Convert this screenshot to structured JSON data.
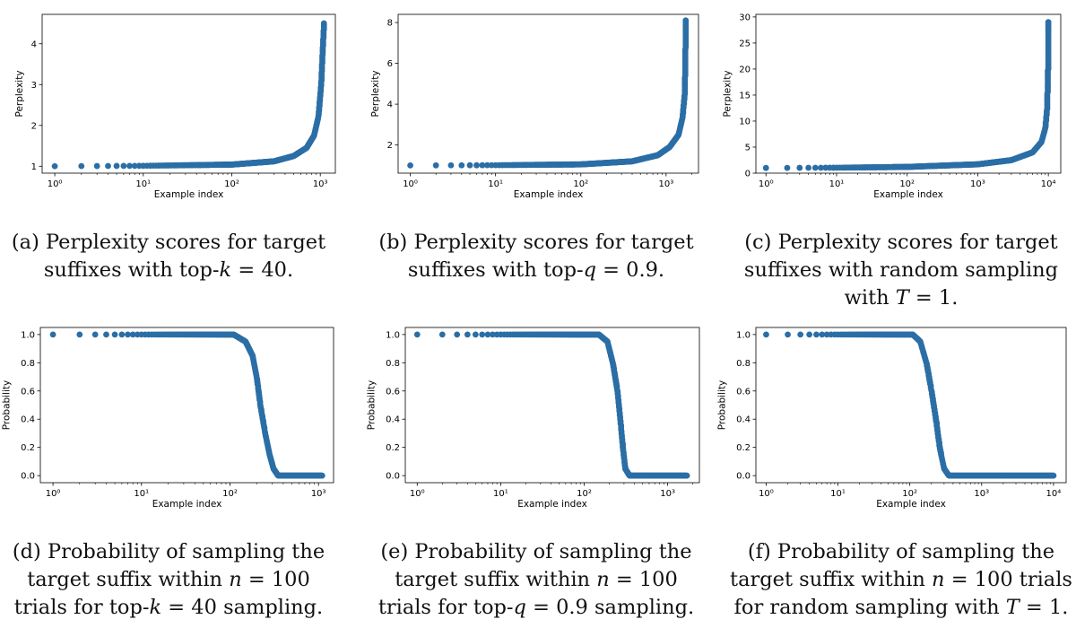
{
  "colors": {
    "marker": "#2b6ea6",
    "axis": "#000000"
  },
  "chart_data": [
    {
      "id": "a",
      "type": "scatter",
      "xscale": "log",
      "xlabel": "Example index",
      "ylabel": "Perplexity",
      "xlim": [
        0.72,
        1480
      ],
      "ylim": [
        0.83,
        4.72
      ],
      "xticks": [
        {
          "v": 1,
          "label": "10⁰"
        },
        {
          "v": 10,
          "label": "10¹"
        },
        {
          "v": 100,
          "label": "10²"
        },
        {
          "v": 1000,
          "label": "10³"
        }
      ],
      "yticks": [
        {
          "v": 1,
          "label": "1"
        },
        {
          "v": 2,
          "label": "2"
        },
        {
          "v": 3,
          "label": "3"
        },
        {
          "v": 4,
          "label": "4"
        }
      ],
      "n": 1100,
      "curve": "rising",
      "anchors": [
        [
          1,
          1.0
        ],
        [
          10,
          1.01
        ],
        [
          100,
          1.04
        ],
        [
          300,
          1.12
        ],
        [
          500,
          1.25
        ],
        [
          700,
          1.45
        ],
        [
          850,
          1.75
        ],
        [
          950,
          2.2
        ],
        [
          1020,
          3.0
        ],
        [
          1060,
          3.8
        ],
        [
          1100,
          4.5
        ]
      ],
      "caption_lines": [
        "(a) Perplexity scores for target",
        "suffixes with top-<i>k</i> = 40."
      ]
    },
    {
      "id": "b",
      "type": "scatter",
      "xscale": "log",
      "xlabel": "Example index",
      "ylabel": "Perplexity",
      "xlim": [
        0.72,
        2400
      ],
      "ylim": [
        0.62,
        8.4
      ],
      "xticks": [
        {
          "v": 1,
          "label": "10⁰"
        },
        {
          "v": 10,
          "label": "10¹"
        },
        {
          "v": 100,
          "label": "10²"
        },
        {
          "v": 1000,
          "label": "10³"
        }
      ],
      "yticks": [
        {
          "v": 2,
          "label": "2"
        },
        {
          "v": 4,
          "label": "4"
        },
        {
          "v": 6,
          "label": "6"
        },
        {
          "v": 8,
          "label": "8"
        }
      ],
      "n": 1700,
      "curve": "rising",
      "anchors": [
        [
          1,
          1.0
        ],
        [
          10,
          1.01
        ],
        [
          100,
          1.05
        ],
        [
          400,
          1.2
        ],
        [
          800,
          1.5
        ],
        [
          1100,
          1.9
        ],
        [
          1400,
          2.5
        ],
        [
          1550,
          3.3
        ],
        [
          1650,
          4.5
        ],
        [
          1700,
          8.1
        ]
      ],
      "caption_lines": [
        "(b) Perplexity scores for target",
        "suffixes with top-<i>q</i> = 0.9."
      ]
    },
    {
      "id": "c",
      "type": "scatter",
      "xscale": "log",
      "xlabel": "Example index",
      "ylabel": "Perplexity",
      "xlim": [
        0.72,
        15000
      ],
      "ylim": [
        0,
        30.5
      ],
      "xticks": [
        {
          "v": 1,
          "label": "10⁰"
        },
        {
          "v": 10,
          "label": "10¹"
        },
        {
          "v": 100,
          "label": "10²"
        },
        {
          "v": 1000,
          "label": "10³"
        },
        {
          "v": 10000,
          "label": "10⁴"
        }
      ],
      "yticks": [
        {
          "v": 0,
          "label": "0"
        },
        {
          "v": 5,
          "label": "5"
        },
        {
          "v": 10,
          "label": "10"
        },
        {
          "v": 15,
          "label": "15"
        },
        {
          "v": 20,
          "label": "20"
        },
        {
          "v": 25,
          "label": "25"
        },
        {
          "v": 30,
          "label": "30"
        }
      ],
      "n": 10000,
      "curve": "rising",
      "anchors": [
        [
          1,
          1.0
        ],
        [
          10,
          1.05
        ],
        [
          100,
          1.2
        ],
        [
          1000,
          1.7
        ],
        [
          3000,
          2.5
        ],
        [
          6000,
          4.0
        ],
        [
          8000,
          6.0
        ],
        [
          9000,
          8.5
        ],
        [
          9500,
          12
        ],
        [
          9800,
          18
        ],
        [
          10000,
          29
        ]
      ],
      "caption_lines": [
        "(c) Perplexity scores for target",
        "suffixes with random sampling",
        "with <i>T</i> = 1."
      ]
    },
    {
      "id": "d",
      "type": "scatter",
      "xscale": "log",
      "xlabel": "Example index",
      "ylabel": "Probability",
      "xlim": [
        0.72,
        1480
      ],
      "ylim": [
        -0.05,
        1.05
      ],
      "xticks": [
        {
          "v": 1,
          "label": "10⁰"
        },
        {
          "v": 10,
          "label": "10¹"
        },
        {
          "v": 100,
          "label": "10²"
        },
        {
          "v": 1000,
          "label": "10³"
        }
      ],
      "yticks": [
        {
          "v": 0,
          "label": "0.0"
        },
        {
          "v": 0.2,
          "label": "0.2"
        },
        {
          "v": 0.4,
          "label": "0.4"
        },
        {
          "v": 0.6,
          "label": "0.6"
        },
        {
          "v": 0.8,
          "label": "0.8"
        },
        {
          "v": 1,
          "label": "1.0"
        }
      ],
      "n": 1100,
      "curve": "falling",
      "anchors": [
        [
          1,
          1.0
        ],
        [
          110,
          1.0
        ],
        [
          150,
          0.95
        ],
        [
          180,
          0.85
        ],
        [
          200,
          0.7
        ],
        [
          220,
          0.5
        ],
        [
          250,
          0.3
        ],
        [
          280,
          0.15
        ],
        [
          310,
          0.05
        ],
        [
          350,
          0.0
        ],
        [
          1100,
          0.0
        ]
      ],
      "caption_lines": [
        "(d) Probability of sampling the",
        "target suffix within <i>n</i> = 100",
        "trials for top-<i>k</i> = 40 sampling."
      ]
    },
    {
      "id": "e",
      "type": "scatter",
      "xscale": "log",
      "xlabel": "Example index",
      "ylabel": "Probability",
      "xlim": [
        0.72,
        2400
      ],
      "ylim": [
        -0.05,
        1.05
      ],
      "xticks": [
        {
          "v": 1,
          "label": "10⁰"
        },
        {
          "v": 10,
          "label": "10¹"
        },
        {
          "v": 100,
          "label": "10²"
        },
        {
          "v": 1000,
          "label": "10³"
        }
      ],
      "yticks": [
        {
          "v": 0,
          "label": "0.0"
        },
        {
          "v": 0.2,
          "label": "0.2"
        },
        {
          "v": 0.4,
          "label": "0.4"
        },
        {
          "v": 0.6,
          "label": "0.6"
        },
        {
          "v": 0.8,
          "label": "0.8"
        },
        {
          "v": 1,
          "label": "1.0"
        }
      ],
      "n": 1700,
      "curve": "falling",
      "anchors": [
        [
          1,
          1.0
        ],
        [
          150,
          1.0
        ],
        [
          190,
          0.95
        ],
        [
          220,
          0.8
        ],
        [
          250,
          0.6
        ],
        [
          270,
          0.4
        ],
        [
          290,
          0.2
        ],
        [
          310,
          0.05
        ],
        [
          350,
          0.0
        ],
        [
          1700,
          0.0
        ]
      ],
      "caption_lines": [
        "(e) Probability of sampling the",
        "target suffix within <i>n</i> = 100",
        "trials for top-<i>q</i> = 0.9 sampling."
      ]
    },
    {
      "id": "f",
      "type": "scatter",
      "xscale": "log",
      "xlabel": "Example index",
      "ylabel": "Probability",
      "xlim": [
        0.72,
        15000
      ],
      "ylim": [
        -0.05,
        1.05
      ],
      "xticks": [
        {
          "v": 1,
          "label": "10⁰"
        },
        {
          "v": 10,
          "label": "10¹"
        },
        {
          "v": 100,
          "label": "10²"
        },
        {
          "v": 1000,
          "label": "10³"
        },
        {
          "v": 10000,
          "label": "10⁴"
        }
      ],
      "yticks": [
        {
          "v": 0,
          "label": "0.0"
        },
        {
          "v": 0.2,
          "label": "0.2"
        },
        {
          "v": 0.4,
          "label": "0.4"
        },
        {
          "v": 0.6,
          "label": "0.6"
        },
        {
          "v": 0.8,
          "label": "0.8"
        },
        {
          "v": 1,
          "label": "1.0"
        }
      ],
      "n": 10000,
      "curve": "falling",
      "anchors": [
        [
          1,
          1.0
        ],
        [
          110,
          1.0
        ],
        [
          140,
          0.95
        ],
        [
          170,
          0.8
        ],
        [
          200,
          0.6
        ],
        [
          230,
          0.4
        ],
        [
          260,
          0.2
        ],
        [
          300,
          0.05
        ],
        [
          350,
          0.0
        ],
        [
          10000,
          0.0
        ]
      ],
      "caption_lines": [
        "(f) Probability of sampling the",
        "target suffix within <i>n</i> = 100 trials",
        "for random sampling with <i>T</i> = 1."
      ]
    }
  ]
}
